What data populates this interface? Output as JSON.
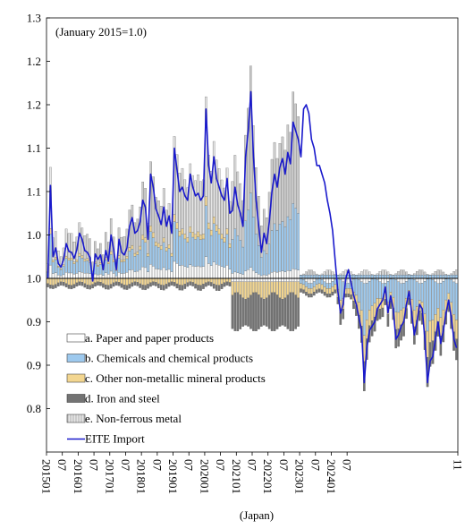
{
  "chart_data": {
    "type": "bar",
    "subtype": "stacked bar with line overlay",
    "annotation": "(January 2015=1.0)",
    "xlabel": "(Japan)",
    "ylabel": "",
    "ylim": [
      0.8,
      1.3
    ],
    "yticks": [
      "1.3",
      "1.2",
      "1.2",
      "1.1",
      "1.1",
      "1.0",
      "1.0",
      "0.9",
      "0.9",
      "0.8"
    ],
    "xtick_labels": [
      "201501",
      "07",
      "201601",
      "07",
      "201701",
      "07",
      "201801",
      "07",
      "201901",
      "07",
      "202001",
      "07",
      "202101",
      "07",
      "202201",
      "07",
      "202301",
      "07",
      "202401",
      "07",
      "11"
    ],
    "grid": false,
    "legend_position": "bottom-left inside plot",
    "series": [
      {
        "key": "paper",
        "name": "a. Paper and paper products",
        "color": "#ffffff",
        "pattern": "none"
      },
      {
        "key": "chem",
        "name": "b. Chemicals and chemical products",
        "color": "#9dc9ee",
        "pattern": "none"
      },
      {
        "key": "nonmetal",
        "name": "c. Other non-metallic mineral products",
        "color": "#f3d690",
        "pattern": "none"
      },
      {
        "key": "iron",
        "name": "d. Iron and steel",
        "color": "#737373",
        "pattern": "none"
      },
      {
        "key": "nonfer",
        "name": "e. Non-ferrous metal",
        "color": "#dadada",
        "pattern": "stripes"
      },
      {
        "key": "eite",
        "name": "EITE Import",
        "color": "#1a1acc",
        "type": "line"
      }
    ],
    "x_start": "2015-01",
    "x_end": "2024-11",
    "eite_import": [
      1.0,
      1.107,
      1.025,
      1.035,
      1.017,
      1.013,
      1.022,
      1.04,
      1.031,
      1.03,
      1.023,
      1.033,
      1.052,
      1.045,
      1.032,
      1.03,
      1.024,
      0.997,
      1.028,
      1.022,
      1.027,
      1.01,
      1.032,
      1.02,
      1.05,
      1.033,
      1.01,
      1.045,
      1.03,
      1.027,
      1.035,
      1.06,
      1.07,
      1.052,
      1.055,
      1.065,
      1.09,
      1.082,
      1.045,
      1.12,
      1.105,
      1.08,
      1.072,
      1.062,
      1.082,
      1.06,
      1.072,
      1.052,
      1.15,
      1.125,
      1.1,
      1.105,
      1.095,
      1.09,
      1.12,
      1.105,
      1.095,
      1.098,
      1.09,
      1.095,
      1.195,
      1.13,
      1.11,
      1.14,
      1.115,
      1.105,
      1.095,
      1.09,
      1.115,
      1.075,
      1.078,
      1.105,
      1.085,
      1.075,
      1.06,
      1.14,
      1.17,
      1.215,
      1.14,
      1.09,
      1.06,
      1.03,
      1.052,
      1.04,
      1.065,
      1.1,
      1.12,
      1.105,
      1.128,
      1.138,
      1.12,
      1.145,
      1.132,
      1.18,
      1.17,
      1.16,
      1.14,
      1.195,
      1.2,
      1.19,
      1.16,
      1.15,
      1.13,
      1.13,
      1.12,
      1.11,
      1.09,
      1.075,
      1.055,
      1.02,
      0.985,
      0.96,
      0.97,
      1.0,
      1.01,
      0.995,
      0.98,
      0.97,
      0.955,
      0.94,
      0.88,
      0.92,
      0.94,
      0.945,
      0.95,
      0.965,
      0.97,
      0.975,
      0.99,
      0.96,
      0.98,
      0.965,
      0.93,
      0.935,
      0.945,
      0.95,
      0.97,
      0.985,
      0.96,
      0.935,
      0.95,
      0.97,
      0.965,
      0.93,
      0.88,
      0.905,
      0.91,
      0.93,
      0.95,
      0.925,
      0.94,
      0.96,
      0.975,
      0.955,
      0.93,
      0.92
    ],
    "approx_total_positive_peak": 1.229
  }
}
